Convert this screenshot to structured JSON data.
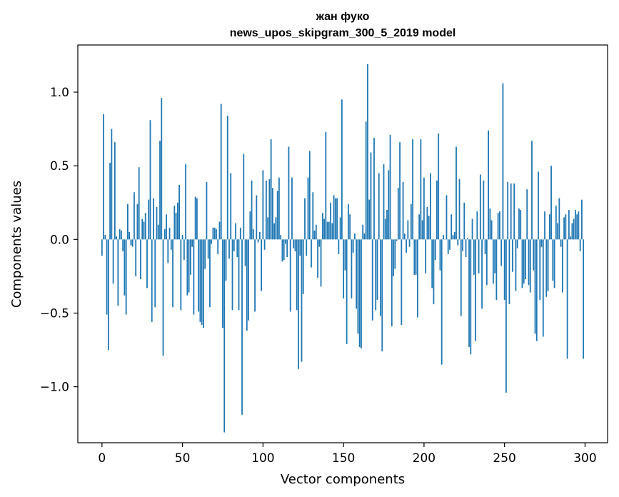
{
  "chart_data": {
    "type": "bar",
    "title": "жан фуко",
    "subtitle": "news_upos_skipgram_300_5_2019 model",
    "xlabel": "Vector components",
    "ylabel": "Components values",
    "xlim": [
      -15,
      314
    ],
    "ylim": [
      -1.38,
      1.32
    ],
    "xticks": [
      0,
      50,
      100,
      150,
      200,
      250,
      300
    ],
    "xtick_labels": [
      "0",
      "50",
      "100",
      "150",
      "200",
      "250",
      "300"
    ],
    "yticks": [
      -1.0,
      -0.5,
      0.0,
      0.5,
      1.0
    ],
    "ytick_labels": [
      "−1.0",
      "−0.5",
      "0.0",
      "0.5",
      "1.0"
    ],
    "grid": false,
    "bar_color": "#1f77b4",
    "x_start": 0,
    "values": [
      -0.11,
      0.85,
      0.03,
      -0.51,
      -0.75,
      0.52,
      0.75,
      -0.3,
      0.66,
      0.02,
      -0.45,
      0.07,
      0.06,
      -0.08,
      -0.38,
      -0.51,
      0.24,
      0.05,
      -0.04,
      -0.05,
      0.32,
      -0.25,
      0.24,
      0.49,
      -0.27,
      0.14,
      0.12,
      0.18,
      -0.33,
      0.27,
      0.81,
      -0.56,
      0.28,
      -0.46,
      0.22,
      0.1,
      0.67,
      0.96,
      -0.79,
      0.07,
      0.17,
      -0.16,
      0.08,
      -0.07,
      -0.46,
      0.23,
      0.18,
      0.25,
      0.37,
      -0.48,
      0.03,
      -0.14,
      0.51,
      -0.38,
      -0.36,
      -0.24,
      -0.05,
      -0.51,
      0.29,
      0.28,
      -0.49,
      -0.56,
      -0.58,
      -0.6,
      -0.2,
      0.39,
      -0.13,
      -0.46,
      -0.03,
      0.08,
      0.08,
      0.07,
      -0.1,
      0.12,
      0.92,
      -0.6,
      -1.31,
      -0.28,
      0.84,
      -0.13,
      0.45,
      -0.48,
      -0.08,
      0.11,
      -0.12,
      -0.48,
      0.08,
      -1.19,
      0.58,
      -0.18,
      -0.62,
      -0.55,
      0.19,
      0.4,
      0.07,
      -0.49,
      0.3,
      -0.02,
      0.05,
      -0.35,
      0.47,
      -0.07,
      0.4,
      0.15,
      0.41,
      0.68,
      0.35,
      0.11,
      0.15,
      0.33,
      0.42,
      0.03,
      -0.15,
      -0.14,
      -0.03,
      -0.12,
      0.63,
      -0.49,
      0.42,
      -0.06,
      -0.08,
      -0.48,
      -0.88,
      -0.11,
      -0.83,
      -0.37,
      0.28,
      -0.11,
      0.42,
      0.6,
      -0.19,
      0.32,
      0.06,
      0.1,
      -0.26,
      -0.05,
      -0.32,
      0.18,
      0.14,
      0.73,
      0.12,
      0.12,
      0.25,
      0.11,
      0.3,
      0.28,
      0.28,
      -0.1,
      0.15,
      0.95,
      -0.4,
      -0.21,
      -0.71,
      0.24,
      0.17,
      -0.4,
      -0.09,
      0.04,
      -0.47,
      -0.64,
      -0.73,
      -0.74,
      0.1,
      0.04,
      0.8,
      1.19,
      0.27,
      0.59,
      -0.55,
      0.69,
      -0.48,
      -0.41,
      0.45,
      -0.52,
      -0.76,
      0.51,
      0.14,
      0.2,
      0.47,
      0.71,
      -0.59,
      -0.25,
      -0.2,
      -0.01,
      0.35,
      0.66,
      -0.58,
      0.39,
      0.04,
      -0.09,
      0.13,
      -0.05,
      0.24,
      0.68,
      -0.24,
      -0.24,
      -0.53,
      0.17,
      0.68,
      0.13,
      0.42,
      -0.23,
      0.22,
      0.16,
      0.45,
      -0.33,
      -0.44,
      -0.14,
      0.4,
      0.72,
      -0.21,
      -0.85,
      0.03,
      0.0,
      0.3,
      -0.1,
      -0.07,
      0.17,
      0.03,
      0.05,
      0.63,
      -0.04,
      0.41,
      -0.52,
      -0.08,
      0.25,
      -0.12,
      0.01,
      -0.73,
      -0.78,
      0.14,
      -0.24,
      -0.69,
      0.19,
      -0.23,
      0.44,
      -0.47,
      0.4,
      -0.1,
      -0.31,
      0.74,
      0.21,
      0.13,
      -0.3,
      -0.23,
      -0.41,
      0.18,
      0.19,
      -0.18,
      1.06,
      -0.41,
      -1.04,
      0.39,
      -0.44,
      0.38,
      -0.22,
      0.38,
      -0.35,
      -0.06,
      0.21,
      0.2,
      -0.33,
      -0.3,
      -0.27,
      0.34,
      -0.31,
      -0.36,
      0.67,
      -0.21,
      -0.64,
      -0.69,
      0.46,
      -0.41,
      -0.05,
      -0.66,
      0.19,
      -0.39,
      -0.35,
      0.17,
      0.5,
      -0.28,
      -0.33,
      0.23,
      0.11,
      0.28,
      -0.05,
      -0.36,
      0.15,
      0.17,
      -0.81,
      0.2,
      0.02,
      0.11,
      0.14,
      0.2,
      0.17,
      0.19,
      -0.08,
      0.27,
      -0.81
    ]
  }
}
